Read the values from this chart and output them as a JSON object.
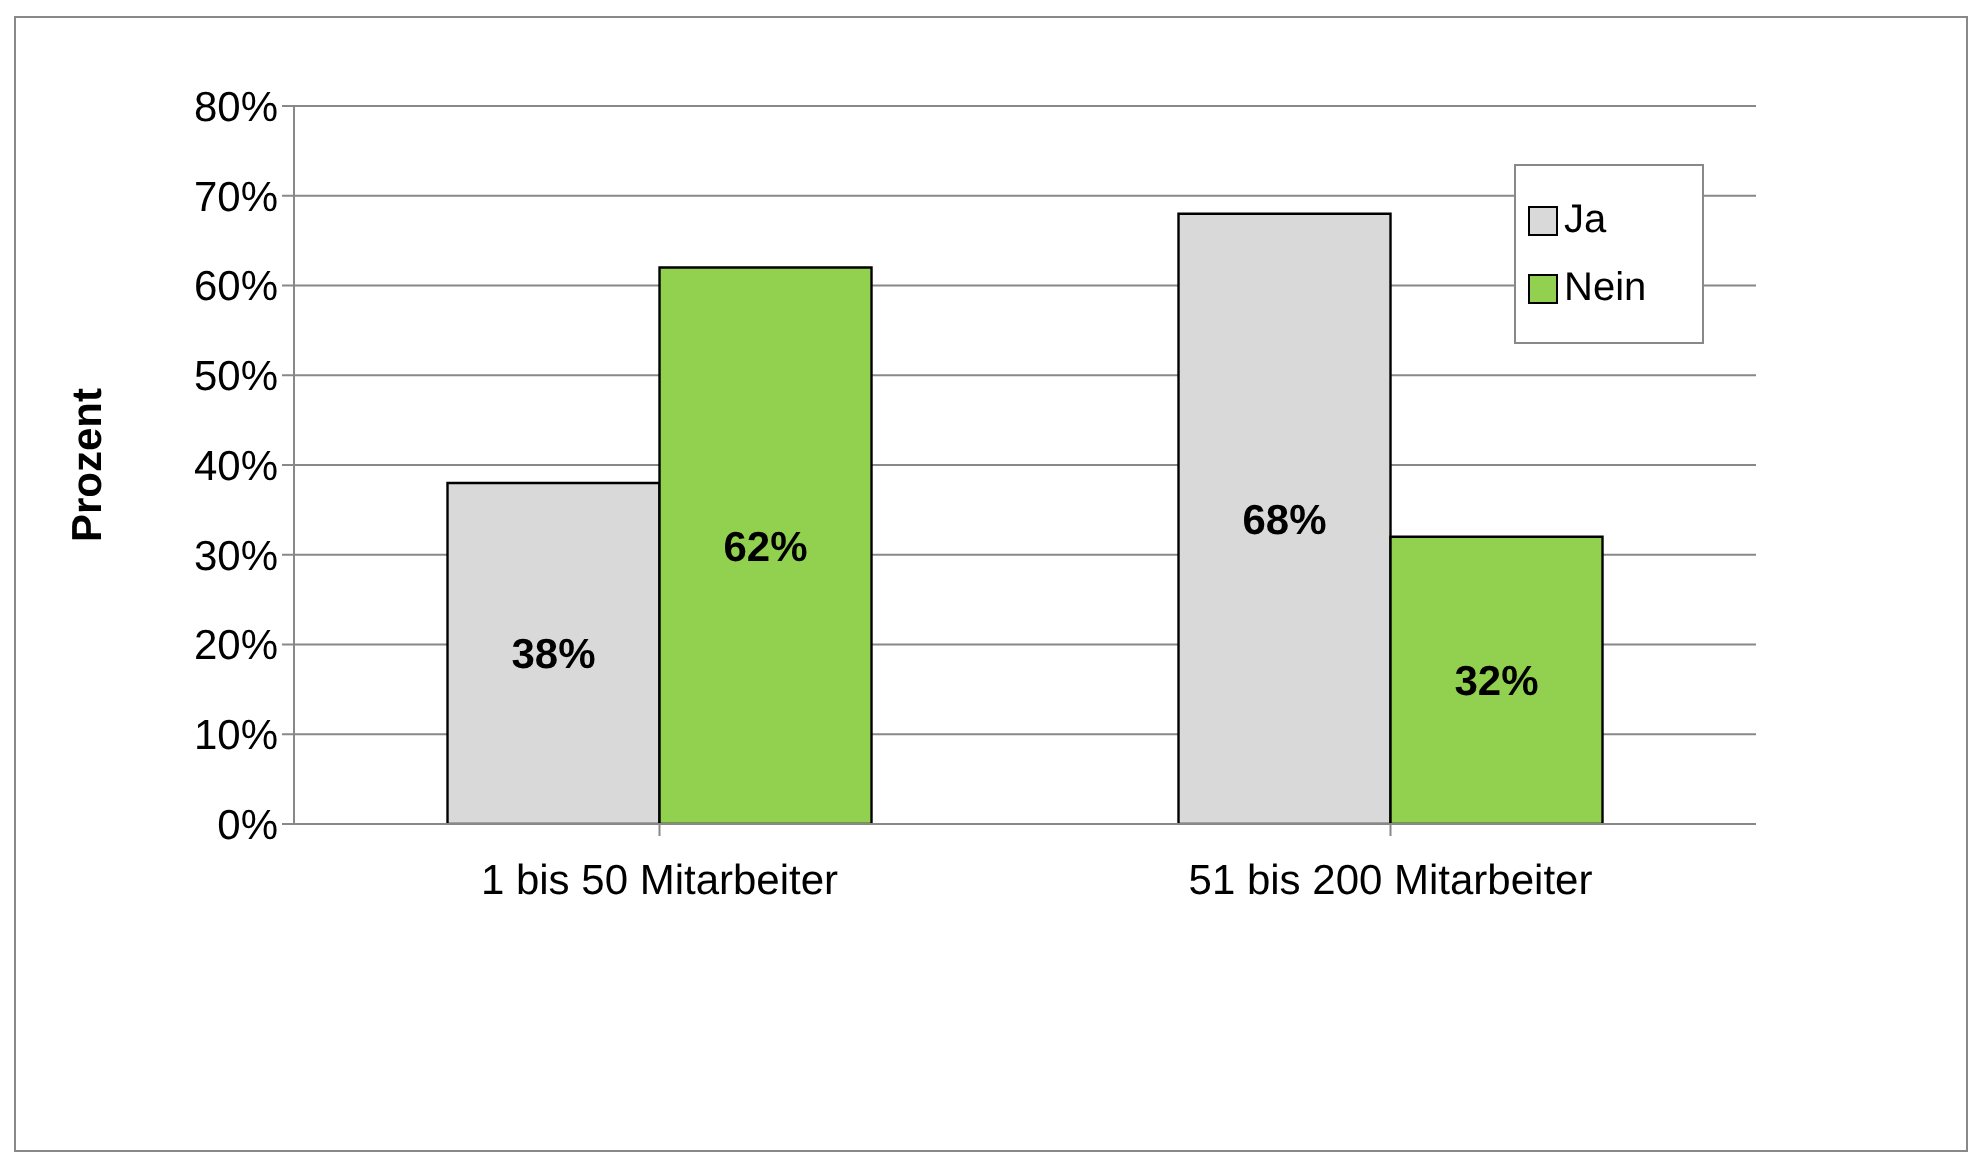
{
  "chart_data": {
    "type": "bar",
    "ylabel": "Prozent",
    "categories": [
      "1 bis 50 Mitarbeiter",
      "51 bis 200 Mitarbeiter"
    ],
    "series": [
      {
        "name": "Ja",
        "color": "#d9d9d9",
        "values": [
          38,
          68
        ],
        "value_labels": [
          "38%",
          "68%"
        ]
      },
      {
        "name": "Nein",
        "color": "#92d050",
        "values": [
          62,
          32
        ],
        "value_labels": [
          "62%",
          "32%"
        ]
      }
    ],
    "ylim": [
      0,
      80
    ],
    "yticks": [
      {
        "value": 0,
        "label": "0%"
      },
      {
        "value": 10,
        "label": "10%"
      },
      {
        "value": 20,
        "label": "20%"
      },
      {
        "value": 30,
        "label": "30%"
      },
      {
        "value": 40,
        "label": "40%"
      },
      {
        "value": 50,
        "label": "50%"
      },
      {
        "value": 60,
        "label": "60%"
      },
      {
        "value": 70,
        "label": "70%"
      },
      {
        "value": 80,
        "label": "80%"
      }
    ],
    "grid": "y",
    "legend": "top right"
  }
}
